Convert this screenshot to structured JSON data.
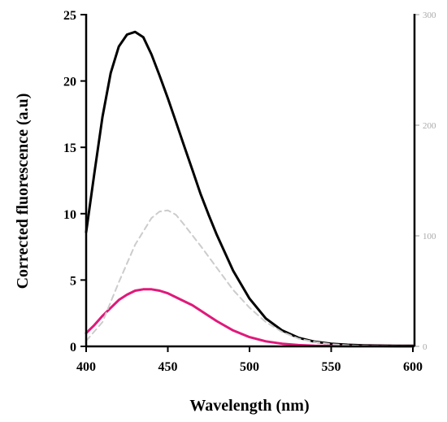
{
  "chart_data": {
    "type": "line",
    "title": "",
    "xlabel": "Wavelength (nm)",
    "ylabel": "Corrected fluorescence (a.u)",
    "xlim": [
      400,
      600
    ],
    "ylim": [
      0,
      25
    ],
    "y2lim": [
      0,
      300
    ],
    "xticks": [
      "400",
      "450",
      "500",
      "550",
      "600"
    ],
    "yticks": [
      "0",
      "5",
      "10",
      "15",
      "20",
      "25"
    ],
    "y2ticks": [
      "0",
      "100",
      "200",
      "300"
    ],
    "grid": false,
    "legend": "none",
    "series": [
      {
        "color": "#000000",
        "style": "solid",
        "axis": "left",
        "x": [
          400,
          405,
          410,
          415,
          420,
          425,
          430,
          435,
          440,
          445,
          450,
          455,
          460,
          465,
          470,
          475,
          480,
          490,
          500,
          510,
          520,
          530,
          540,
          550,
          560,
          570,
          580,
          590,
          600
        ],
        "y": [
          8.6,
          13.0,
          17.3,
          20.6,
          22.6,
          23.5,
          23.7,
          23.3,
          22.0,
          20.4,
          18.7,
          16.9,
          15.1,
          13.3,
          11.5,
          9.9,
          8.4,
          5.7,
          3.6,
          2.1,
          1.2,
          0.65,
          0.35,
          0.2,
          0.12,
          0.08,
          0.06,
          0.05,
          0.05
        ]
      },
      {
        "color": "#e0197a",
        "style": "solid",
        "axis": "left",
        "x": [
          400,
          405,
          410,
          415,
          420,
          425,
          430,
          435,
          440,
          445,
          450,
          455,
          460,
          465,
          470,
          475,
          480,
          490,
          500,
          510,
          520,
          530,
          540,
          550,
          560,
          570,
          580,
          590,
          600
        ],
        "y": [
          1.0,
          1.6,
          2.3,
          2.9,
          3.5,
          3.9,
          4.2,
          4.3,
          4.3,
          4.2,
          4.0,
          3.7,
          3.4,
          3.1,
          2.7,
          2.3,
          1.9,
          1.2,
          0.7,
          0.38,
          0.2,
          0.1,
          0.05,
          0.03,
          0.02,
          0.01,
          0.01,
          0.0,
          0.0
        ]
      },
      {
        "color": "#cccccc",
        "style": "dashed",
        "axis": "right",
        "x": [
          400,
          410,
          420,
          430,
          440,
          445,
          450,
          455,
          460,
          470,
          480,
          490,
          500,
          510,
          520,
          530,
          540,
          550,
          560,
          570,
          580,
          590,
          600
        ],
        "y": [
          5,
          22,
          58,
          92,
          116,
          122,
          123,
          119,
          110,
          91,
          71,
          51,
          35,
          22,
          13,
          7,
          4,
          2,
          1,
          0.5,
          0.3,
          0.2,
          0.1
        ]
      }
    ]
  }
}
